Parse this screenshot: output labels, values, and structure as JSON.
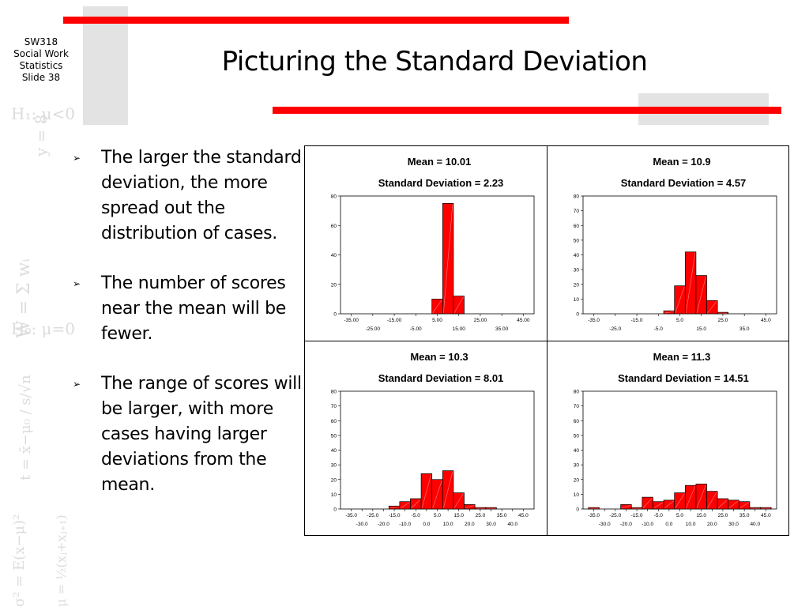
{
  "course": {
    "line1": "SW318",
    "line2": "Social Work",
    "line3": "Statistics",
    "line4": "Slide 38"
  },
  "title": "Picturing the Standard Deviation",
  "bullets": [
    {
      "text": "The larger the standard deviation, the more spread out the distribution of cases."
    },
    {
      "text": "The number of scores near the mean will be fewer."
    },
    {
      "text": "The range of scores will be larger, with more cases having larger deviations from the mean."
    }
  ],
  "watermark": [
    "H₁: μ<0",
    "y = 8",
    "W = Σ wᵢ",
    "H₀: μ=0",
    "t = x̄−μ₀ / s/√n",
    "σ² = E(x−μ)²",
    "μ = ½(xⱼ+xⱼ₊₁)"
  ],
  "colors": {
    "bar": "#ff0000",
    "accent_bar": "#ff0000",
    "grey_bar": "#e3e3e3"
  },
  "chart_data": [
    {
      "type": "bar",
      "title": "Mean = 10.01",
      "subtitle": "Standard Deviation = 2.23",
      "ylim": [
        0,
        80
      ],
      "yticks": [
        0,
        20,
        40,
        60,
        80
      ],
      "xlim": [
        -40,
        50
      ],
      "bin_width": 5,
      "xticks_top": [
        "-35.00",
        "-15.00",
        "5.00",
        "25.00",
        "45.00"
      ],
      "xticks_top_values": [
        -35,
        -15,
        5,
        25,
        45
      ],
      "xticks_bottom": [
        "-25.00",
        "-5.00",
        "15.00",
        "35.00"
      ],
      "xticks_bottom_values": [
        -25,
        -5,
        15,
        35
      ],
      "bins": [
        5,
        10,
        15
      ],
      "values": [
        10,
        75,
        12
      ]
    },
    {
      "type": "bar",
      "title": "Mean = 10.9",
      "subtitle": "Standard Deviation = 4.57",
      "ylim": [
        0,
        80
      ],
      "yticks": [
        0,
        10,
        20,
        30,
        40,
        50,
        60,
        70,
        80
      ],
      "xlim": [
        -40,
        50
      ],
      "bin_width": 5,
      "xticks_top": [
        "-35.0",
        "-15.0",
        "5.0",
        "25.0",
        "45.0"
      ],
      "xticks_top_values": [
        -35,
        -15,
        5,
        25,
        45
      ],
      "xticks_bottom": [
        "-25.0",
        "-5.0",
        "15.0",
        "35.0"
      ],
      "xticks_bottom_values": [
        -25,
        -5,
        15,
        35
      ],
      "bins": [
        0,
        5,
        10,
        15,
        20,
        25
      ],
      "values": [
        2,
        19,
        42,
        26,
        9,
        1
      ]
    },
    {
      "type": "bar",
      "title": "Mean = 10.3",
      "subtitle": "Standard Deviation = 8.01",
      "ylim": [
        0,
        80
      ],
      "yticks": [
        0,
        10,
        20,
        30,
        40,
        50,
        60,
        70,
        80
      ],
      "xlim": [
        -40,
        50
      ],
      "bin_width": 5,
      "xticks_top": [
        "-35.0",
        "-25.0",
        "-15.0",
        "-5.0",
        "5.0",
        "15.0",
        "25.0",
        "35.0",
        "45.0"
      ],
      "xticks_top_values": [
        -35,
        -25,
        -15,
        -5,
        5,
        15,
        25,
        35,
        45
      ],
      "xticks_bottom": [
        "-30.0",
        "-20.0",
        "-10.0",
        "0.0",
        "10.0",
        "20.0",
        "30.0",
        "40.0"
      ],
      "xticks_bottom_values": [
        -30,
        -20,
        -10,
        0,
        10,
        20,
        30,
        40
      ],
      "bins": [
        -15,
        -10,
        -5,
        0,
        5,
        10,
        15,
        20,
        25,
        30
      ],
      "values": [
        2,
        5,
        7,
        24,
        20,
        26,
        11,
        3,
        1,
        1
      ]
    },
    {
      "type": "bar",
      "title": "Mean = 11.3",
      "subtitle": "Standard Deviation = 14.51",
      "ylim": [
        0,
        80
      ],
      "yticks": [
        0,
        10,
        20,
        30,
        40,
        50,
        60,
        70,
        80
      ],
      "xlim": [
        -40,
        50
      ],
      "bin_width": 5,
      "xticks_top": [
        "-35.0",
        "-25.0",
        "-15.0",
        "-5.0",
        "5.0",
        "15.0",
        "25.0",
        "35.0",
        "45.0"
      ],
      "xticks_top_values": [
        -35,
        -25,
        -15,
        -5,
        5,
        15,
        25,
        35,
        45
      ],
      "xticks_bottom": [
        "-30.0",
        "-20.0",
        "-10.0",
        "0.0",
        "10.0",
        "20.0",
        "30.0",
        "40.0"
      ],
      "xticks_bottom_values": [
        -30,
        -20,
        -10,
        0,
        10,
        20,
        30,
        40
      ],
      "bins": [
        -35,
        -20,
        -15,
        -10,
        -5,
        0,
        5,
        10,
        15,
        20,
        25,
        30,
        35,
        40,
        45
      ],
      "values": [
        1,
        3,
        1,
        8,
        5,
        6,
        11,
        16,
        17,
        12,
        7,
        6,
        5,
        1,
        1
      ]
    }
  ]
}
